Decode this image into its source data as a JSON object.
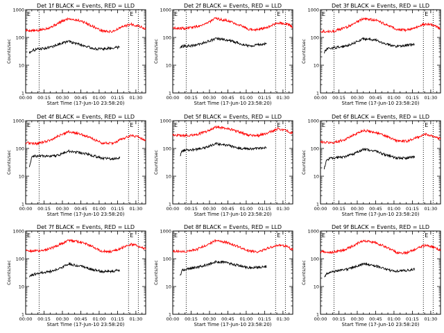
{
  "chart_data": [
    {
      "type": "line",
      "title": "Det 1f BLACK = Events, RED = LLD",
      "xlabel": "Start Time (17-Jun-10 23:58:20)",
      "ylabel": "Counts/sec",
      "yscale": "log",
      "ylim": [
        1,
        1000
      ],
      "xlim_minutes": [
        0,
        98
      ],
      "x_tick_labels": [
        "00:00",
        "00:15",
        "00:30",
        "00:45",
        "01:00",
        "01:15",
        "01:30"
      ],
      "y_tick_labels": [
        "1",
        "10",
        "100",
        "1000"
      ],
      "vertical_dotted_lines": [
        {
          "label": "E",
          "time_min": 0
        },
        {
          "label": "",
          "time_min": 11
        },
        {
          "label": "E",
          "time_min": 84
        },
        {
          "label": "",
          "time_min": 92
        }
      ],
      "series": [
        {
          "name": "LLD",
          "color": "#ff0000",
          "x": [
            0,
            10,
            20,
            28,
            35,
            45,
            55,
            62,
            70,
            80,
            86,
            92,
            98
          ],
          "values": [
            180,
            175,
            230,
            350,
            480,
            400,
            250,
            175,
            160,
            250,
            300,
            260,
            200
          ]
        },
        {
          "name": "Events",
          "color": "#000000",
          "x": [
            3,
            5,
            10,
            20,
            28,
            35,
            45,
            55,
            62,
            70,
            75,
            77
          ],
          "values": [
            28,
            34,
            38,
            44,
            60,
            72,
            55,
            40,
            38,
            42,
            44,
            46
          ]
        }
      ]
    },
    {
      "type": "line",
      "title": "Det 2f BLACK = Events, RED = LLD",
      "xlabel": "Start Time (17-Jun-10 23:58:20)",
      "ylabel": "Counts/sec",
      "yscale": "log",
      "ylim": [
        1,
        1000
      ],
      "xlim_minutes": [
        0,
        98
      ],
      "x_tick_labels": [
        "00:00",
        "00:15",
        "00:30",
        "00:45",
        "01:00",
        "01:15",
        "01:30"
      ],
      "y_tick_labels": [
        "1",
        "10",
        "100",
        "1000"
      ],
      "vertical_dotted_lines": [
        {
          "label": "E",
          "time_min": 0
        },
        {
          "label": "",
          "time_min": 11
        },
        {
          "label": "E",
          "time_min": 84
        },
        {
          "label": "",
          "time_min": 92
        }
      ],
      "series": [
        {
          "name": "LLD",
          "color": "#ff0000",
          "x": [
            0,
            10,
            20,
            28,
            35,
            45,
            55,
            62,
            70,
            80,
            86,
            92,
            98
          ],
          "values": [
            220,
            210,
            250,
            330,
            480,
            400,
            280,
            200,
            190,
            260,
            330,
            320,
            240
          ]
        },
        {
          "name": "Events",
          "color": "#000000",
          "x": [
            6,
            8,
            15,
            20,
            28,
            35,
            45,
            55,
            62,
            70,
            75,
            77
          ],
          "values": [
            42,
            48,
            50,
            55,
            70,
            90,
            80,
            60,
            50,
            55,
            58,
            58
          ]
        }
      ]
    },
    {
      "type": "line",
      "title": "Det 3f BLACK = Events, RED = LLD",
      "xlabel": "Start Time (17-Jun-10 23:58:20)",
      "ylabel": "Counts/sec",
      "yscale": "log",
      "ylim": [
        1,
        1000
      ],
      "xlim_minutes": [
        0,
        98
      ],
      "x_tick_labels": [
        "00:00",
        "00:15",
        "00:30",
        "00:45",
        "01:00",
        "01:15",
        "01:30"
      ],
      "y_tick_labels": [
        "1",
        "10",
        "100",
        "1000"
      ],
      "vertical_dotted_lines": [
        {
          "label": "E",
          "time_min": 0
        },
        {
          "label": "",
          "time_min": 11
        },
        {
          "label": "E",
          "time_min": 84
        },
        {
          "label": "",
          "time_min": 92
        }
      ],
      "series": [
        {
          "name": "LLD",
          "color": "#ff0000",
          "x": [
            0,
            10,
            20,
            28,
            35,
            45,
            55,
            62,
            70,
            80,
            86,
            92,
            98
          ],
          "values": [
            170,
            165,
            220,
            330,
            480,
            420,
            280,
            200,
            180,
            250,
            310,
            280,
            210
          ]
        },
        {
          "name": "Events",
          "color": "#000000",
          "x": [
            3,
            5,
            10,
            20,
            28,
            35,
            45,
            55,
            62,
            70,
            75,
            77
          ],
          "values": [
            28,
            38,
            42,
            48,
            65,
            90,
            80,
            55,
            48,
            52,
            55,
            56
          ]
        }
      ]
    },
    {
      "type": "line",
      "title": "Det 4f BLACK = Events, RED = LLD",
      "xlabel": "Start Time (17-Jun-10 23:58:20)",
      "ylabel": "Counts/sec",
      "yscale": "log",
      "ylim": [
        1,
        1000
      ],
      "xlim_minutes": [
        0,
        98
      ],
      "x_tick_labels": [
        "00:00",
        "00:15",
        "00:30",
        "00:45",
        "01:00",
        "01:15",
        "01:30"
      ],
      "y_tick_labels": [
        "1",
        "10",
        "100",
        "1000"
      ],
      "vertical_dotted_lines": [
        {
          "label": "E",
          "time_min": 0
        },
        {
          "label": "",
          "time_min": 11
        },
        {
          "label": "E",
          "time_min": 84
        },
        {
          "label": "",
          "time_min": 92
        }
      ],
      "series": [
        {
          "name": "LLD",
          "color": "#ff0000",
          "x": [
            0,
            10,
            20,
            28,
            35,
            45,
            55,
            62,
            70,
            80,
            86,
            92,
            98
          ],
          "values": [
            160,
            150,
            200,
            300,
            400,
            330,
            220,
            160,
            150,
            230,
            290,
            260,
            200
          ]
        },
        {
          "name": "Events",
          "color": "#000000",
          "x": [
            3,
            5,
            10,
            20,
            28,
            35,
            45,
            55,
            62,
            70,
            75,
            77
          ],
          "values": [
            22,
            50,
            55,
            50,
            60,
            80,
            70,
            55,
            45,
            42,
            45,
            48
          ]
        }
      ]
    },
    {
      "type": "line",
      "title": "Det 5f BLACK = Events, RED = LLD",
      "xlabel": "Start Time (17-Jun-10 23:58:20)",
      "ylabel": "Counts/sec",
      "yscale": "log",
      "ylim": [
        1,
        1000
      ],
      "xlim_minutes": [
        0,
        98
      ],
      "x_tick_labels": [
        "00:00",
        "00:15",
        "00:30",
        "00:45",
        "01:00",
        "01:15",
        "01:30"
      ],
      "y_tick_labels": [
        "1",
        "10",
        "100",
        "1000"
      ],
      "vertical_dotted_lines": [
        {
          "label": "E",
          "time_min": 0
        },
        {
          "label": "",
          "time_min": 11
        },
        {
          "label": "E",
          "time_min": 84
        },
        {
          "label": "",
          "time_min": 92
        }
      ],
      "series": [
        {
          "name": "LLD",
          "color": "#ff0000",
          "x": [
            0,
            10,
            20,
            28,
            35,
            45,
            55,
            62,
            70,
            80,
            86,
            92,
            98
          ],
          "values": [
            300,
            290,
            320,
            420,
            600,
            520,
            380,
            300,
            290,
            400,
            520,
            450,
            350
          ]
        },
        {
          "name": "Events",
          "color": "#000000",
          "x": [
            6,
            8,
            15,
            20,
            28,
            35,
            45,
            55,
            62,
            70,
            75,
            77
          ],
          "values": [
            55,
            85,
            90,
            95,
            110,
            150,
            130,
            100,
            95,
            100,
            105,
            110
          ]
        }
      ]
    },
    {
      "type": "line",
      "title": "Det 6f BLACK = Events, RED = LLD",
      "xlabel": "Start Time (17-Jun-10 23:58:20)",
      "ylabel": "Counts/sec",
      "yscale": "log",
      "ylim": [
        1,
        1000
      ],
      "xlim_minutes": [
        0,
        98
      ],
      "x_tick_labels": [
        "00:00",
        "00:15",
        "00:30",
        "00:45",
        "01:00",
        "01:15",
        "01:30"
      ],
      "y_tick_labels": [
        "1",
        "10",
        "100",
        "1000"
      ],
      "vertical_dotted_lines": [
        {
          "label": "E",
          "time_min": 0
        },
        {
          "label": "",
          "time_min": 11
        },
        {
          "label": "E",
          "time_min": 84
        },
        {
          "label": "",
          "time_min": 92
        }
      ],
      "series": [
        {
          "name": "LLD",
          "color": "#ff0000",
          "x": [
            0,
            10,
            20,
            28,
            35,
            45,
            55,
            62,
            70,
            80,
            86,
            92,
            98
          ],
          "values": [
            170,
            160,
            210,
            320,
            450,
            380,
            260,
            190,
            180,
            260,
            330,
            280,
            220
          ]
        },
        {
          "name": "Events",
          "color": "#000000",
          "x": [
            3,
            5,
            10,
            20,
            28,
            35,
            45,
            55,
            62,
            70,
            75,
            77
          ],
          "values": [
            18,
            40,
            45,
            50,
            65,
            95,
            80,
            55,
            45,
            45,
            48,
            50
          ]
        }
      ]
    },
    {
      "type": "line",
      "title": "Det 7f BLACK = Events, RED = LLD",
      "xlabel": "Start Time (17-Jun-10 23:58:20)",
      "ylabel": "Counts/sec",
      "yscale": "log",
      "ylim": [
        1,
        1000
      ],
      "xlim_minutes": [
        0,
        98
      ],
      "x_tick_labels": [
        "00:00",
        "00:15",
        "00:30",
        "00:45",
        "01:00",
        "01:15",
        "01:30"
      ],
      "y_tick_labels": [
        "1",
        "10",
        "100",
        "1000"
      ],
      "vertical_dotted_lines": [
        {
          "label": "E",
          "time_min": 0
        },
        {
          "label": "",
          "time_min": 11
        },
        {
          "label": "E",
          "time_min": 84
        },
        {
          "label": "",
          "time_min": 92
        }
      ],
      "series": [
        {
          "name": "LLD",
          "color": "#ff0000",
          "x": [
            0,
            10,
            20,
            28,
            35,
            45,
            55,
            62,
            70,
            80,
            86,
            92,
            98
          ],
          "values": [
            200,
            190,
            230,
            330,
            470,
            400,
            270,
            190,
            180,
            260,
            330,
            290,
            230
          ]
        },
        {
          "name": "Events",
          "color": "#000000",
          "x": [
            3,
            5,
            10,
            20,
            28,
            35,
            45,
            55,
            62,
            70,
            75,
            77
          ],
          "values": [
            22,
            26,
            30,
            35,
            45,
            65,
            55,
            40,
            35,
            35,
            38,
            40
          ]
        }
      ]
    },
    {
      "type": "line",
      "title": "Det 8f BLACK = Events, RED = LLD",
      "xlabel": "Start Time (17-Jun-10 23:58:20)",
      "ylabel": "Counts/sec",
      "yscale": "log",
      "ylim": [
        1,
        1000
      ],
      "xlim_minutes": [
        0,
        98
      ],
      "x_tick_labels": [
        "00:00",
        "00:15",
        "00:30",
        "00:45",
        "01:00",
        "01:15",
        "01:30"
      ],
      "y_tick_labels": [
        "1",
        "10",
        "100",
        "1000"
      ],
      "vertical_dotted_lines": [
        {
          "label": "E",
          "time_min": 0
        },
        {
          "label": "",
          "time_min": 11
        },
        {
          "label": "E",
          "time_min": 84
        },
        {
          "label": "",
          "time_min": 92
        }
      ],
      "series": [
        {
          "name": "LLD",
          "color": "#ff0000",
          "x": [
            0,
            10,
            20,
            28,
            35,
            45,
            55,
            62,
            70,
            80,
            86,
            92,
            98
          ],
          "values": [
            190,
            180,
            220,
            320,
            450,
            380,
            260,
            190,
            180,
            260,
            320,
            280,
            220
          ]
        },
        {
          "name": "Events",
          "color": "#000000",
          "x": [
            6,
            8,
            15,
            20,
            28,
            35,
            45,
            55,
            62,
            70,
            75,
            77
          ],
          "values": [
            25,
            40,
            45,
            50,
            60,
            80,
            70,
            55,
            48,
            50,
            52,
            55
          ]
        }
      ]
    },
    {
      "type": "line",
      "title": "Det 9f BLACK = Events, RED = LLD",
      "xlabel": "Start Time (17-Jun-10 23:58:20)",
      "ylabel": "Counts/sec",
      "yscale": "log",
      "ylim": [
        1,
        1000
      ],
      "xlim_minutes": [
        0,
        98
      ],
      "x_tick_labels": [
        "00:00",
        "00:15",
        "00:30",
        "00:45",
        "01:00",
        "01:15",
        "01:30"
      ],
      "y_tick_labels": [
        "1",
        "10",
        "100",
        "1000"
      ],
      "vertical_dotted_lines": [
        {
          "label": "E",
          "time_min": 0
        },
        {
          "label": "",
          "time_min": 11
        },
        {
          "label": "E",
          "time_min": 84
        },
        {
          "label": "",
          "time_min": 92
        }
      ],
      "series": [
        {
          "name": "LLD",
          "color": "#ff0000",
          "x": [
            0,
            10,
            20,
            28,
            35,
            45,
            55,
            62,
            70,
            80,
            86,
            92,
            98
          ],
          "values": [
            180,
            170,
            210,
            320,
            450,
            380,
            250,
            170,
            160,
            250,
            310,
            260,
            210
          ]
        },
        {
          "name": "Events",
          "color": "#000000",
          "x": [
            3,
            5,
            10,
            20,
            28,
            35,
            45,
            55,
            62,
            70,
            75,
            77
          ],
          "values": [
            22,
            30,
            35,
            40,
            50,
            65,
            55,
            40,
            35,
            38,
            40,
            42
          ]
        }
      ]
    }
  ]
}
